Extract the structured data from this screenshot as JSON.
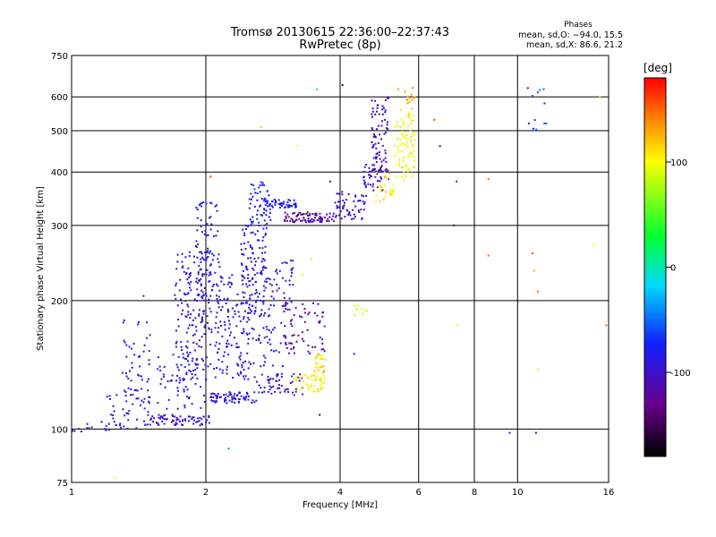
{
  "chart_data": {
    "type": "scatter",
    "title": "Tromsø 20130615 22:36:00–22:37:43",
    "subtitle": "RwPretec (8p)",
    "xlabel": "Frequency [MHz]",
    "ylabel": "Stationary phase Virtual Height [km]",
    "x_scale": "log",
    "y_scale": "log",
    "xlim": [
      1,
      16
    ],
    "ylim": [
      75,
      750
    ],
    "x_ticks": [
      1,
      2,
      4,
      6,
      8,
      10,
      16
    ],
    "y_ticks": [
      75,
      100,
      200,
      300,
      400,
      500,
      600,
      750
    ],
    "grid": true,
    "legend": {
      "heading": "Phases",
      "lines": [
        "mean, sd,O: −94.0, 15.5",
        "mean, sd,X:  86.6, 21.2"
      ]
    },
    "colorbar": {
      "label": "[deg]",
      "ticks": [
        100,
        0,
        -100
      ],
      "range": [
        -180,
        180
      ]
    },
    "clusters": [
      {
        "x_range": [
          1.0,
          1.35
        ],
        "y_range": [
          98,
          104
        ],
        "phase": -95,
        "density": 20
      },
      {
        "x_range": [
          1.2,
          1.5
        ],
        "y_range": [
          100,
          125
        ],
        "phase": -92,
        "density": 50
      },
      {
        "x_range": [
          1.3,
          1.5
        ],
        "y_range": [
          120,
          180
        ],
        "phase": -96,
        "density": 40
      },
      {
        "x_range": [
          1.5,
          2.08
        ],
        "y_range": [
          102,
          108
        ],
        "phase": -98,
        "density": 70
      },
      {
        "x_range": [
          1.55,
          2.0
        ],
        "y_range": [
          110,
          150
        ],
        "phase": -90,
        "density": 60
      },
      {
        "x_range": [
          1.7,
          2.15
        ],
        "y_range": [
          130,
          260
        ],
        "phase": -94,
        "density": 190
      },
      {
        "x_range": [
          1.9,
          2.15
        ],
        "y_range": [
          200,
          340
        ],
        "phase": -88,
        "density": 80
      },
      {
        "x_range": [
          2.05,
          2.6
        ],
        "y_range": [
          115,
          122
        ],
        "phase": -95,
        "density": 70
      },
      {
        "x_range": [
          2.15,
          2.6
        ],
        "y_range": [
          130,
          230
        ],
        "phase": -92,
        "density": 130
      },
      {
        "x_range": [
          2.4,
          2.75
        ],
        "y_range": [
          180,
          300
        ],
        "phase": -86,
        "density": 110
      },
      {
        "x_range": [
          2.5,
          2.8
        ],
        "y_range": [
          300,
          380
        ],
        "phase": -78,
        "density": 55
      },
      {
        "x_range": [
          2.6,
          3.3
        ],
        "y_range": [
          120,
          135
        ],
        "phase": -100,
        "density": 55
      },
      {
        "x_range": [
          2.7,
          3.2
        ],
        "y_range": [
          330,
          345
        ],
        "phase": -80,
        "density": 50
      },
      {
        "x_range": [
          2.6,
          3.15
        ],
        "y_range": [
          140,
          250
        ],
        "phase": -98,
        "density": 90
      },
      {
        "x_range": [
          3.0,
          3.7
        ],
        "y_range": [
          150,
          200
        ],
        "phase": -118,
        "density": 60
      },
      {
        "x_range": [
          3.0,
          3.45
        ],
        "y_range": [
          305,
          322
        ],
        "phase": -135,
        "density": 40
      },
      {
        "x_range": [
          3.35,
          3.9
        ],
        "y_range": [
          305,
          320
        ],
        "phase": -115,
        "density": 45
      },
      {
        "x_range": [
          3.15,
          3.7
        ],
        "y_range": [
          122,
          135
        ],
        "phase": 105,
        "density": 45
      },
      {
        "x_range": [
          3.5,
          3.75
        ],
        "y_range": [
          135,
          150
        ],
        "phase": 115,
        "density": 25
      },
      {
        "x_range": [
          3.9,
          4.6
        ],
        "y_range": [
          310,
          360
        ],
        "phase": -100,
        "density": 55
      },
      {
        "x_range": [
          4.5,
          5.0
        ],
        "y_range": [
          360,
          420
        ],
        "phase": -100,
        "density": 40
      },
      {
        "x_range": [
          4.7,
          5.15
        ],
        "y_range": [
          380,
          600
        ],
        "phase": -105,
        "density": 80
      },
      {
        "x_range": [
          4.8,
          5.3
        ],
        "y_range": [
          340,
          400
        ],
        "phase": 110,
        "density": 30
      },
      {
        "x_range": [
          5.3,
          5.9
        ],
        "y_range": [
          380,
          560
        ],
        "phase": 100,
        "density": 80
      },
      {
        "x_range": [
          5.4,
          5.9
        ],
        "y_range": [
          560,
          630
        ],
        "phase": 130,
        "density": 15
      },
      {
        "x_range": [
          4.3,
          4.6
        ],
        "y_range": [
          180,
          195
        ],
        "phase": 80,
        "density": 8
      },
      {
        "x_range": [
          10.5,
          11.5
        ],
        "y_range": [
          500,
          650
        ],
        "phase": -60,
        "density": 10
      }
    ],
    "outliers": [
      {
        "x": 4.05,
        "y": 640,
        "phase": -150
      },
      {
        "x": 3.55,
        "y": 625,
        "phase": -20
      },
      {
        "x": 2.66,
        "y": 510,
        "phase": 120
      },
      {
        "x": 2.05,
        "y": 390,
        "phase": 160
      },
      {
        "x": 1.45,
        "y": 205,
        "phase": -130
      },
      {
        "x": 2.25,
        "y": 90,
        "phase": -40
      },
      {
        "x": 3.6,
        "y": 108,
        "phase": -150
      },
      {
        "x": 1.25,
        "y": 77,
        "phase": 100
      },
      {
        "x": 6.5,
        "y": 530,
        "phase": 160
      },
      {
        "x": 6.7,
        "y": 460,
        "phase": -150
      },
      {
        "x": 7.3,
        "y": 380,
        "phase": -120
      },
      {
        "x": 7.2,
        "y": 300,
        "phase": -140
      },
      {
        "x": 8.6,
        "y": 385,
        "phase": 150
      },
      {
        "x": 8.6,
        "y": 255,
        "phase": 150
      },
      {
        "x": 7.3,
        "y": 175,
        "phase": 100
      },
      {
        "x": 9.6,
        "y": 98,
        "phase": -100
      },
      {
        "x": 11.0,
        "y": 98,
        "phase": -130
      },
      {
        "x": 10.8,
        "y": 258,
        "phase": 160
      },
      {
        "x": 11.1,
        "y": 210,
        "phase": 150
      },
      {
        "x": 10.9,
        "y": 235,
        "phase": 130
      },
      {
        "x": 11.1,
        "y": 138,
        "phase": 80
      },
      {
        "x": 10.6,
        "y": 520,
        "phase": -110
      },
      {
        "x": 11.6,
        "y": 520,
        "phase": -50
      },
      {
        "x": 14.8,
        "y": 270,
        "phase": 100
      },
      {
        "x": 15.8,
        "y": 175,
        "phase": 150
      },
      {
        "x": 15.3,
        "y": 598,
        "phase": 110
      },
      {
        "x": 3.3,
        "y": 230,
        "phase": 90
      },
      {
        "x": 3.45,
        "y": 250,
        "phase": 110
      },
      {
        "x": 1.9,
        "y": 160,
        "phase": 100
      },
      {
        "x": 4.3,
        "y": 150,
        "phase": -100
      },
      {
        "x": 3.8,
        "y": 380,
        "phase": -120
      },
      {
        "x": 3.2,
        "y": 460,
        "phase": 100
      }
    ]
  }
}
